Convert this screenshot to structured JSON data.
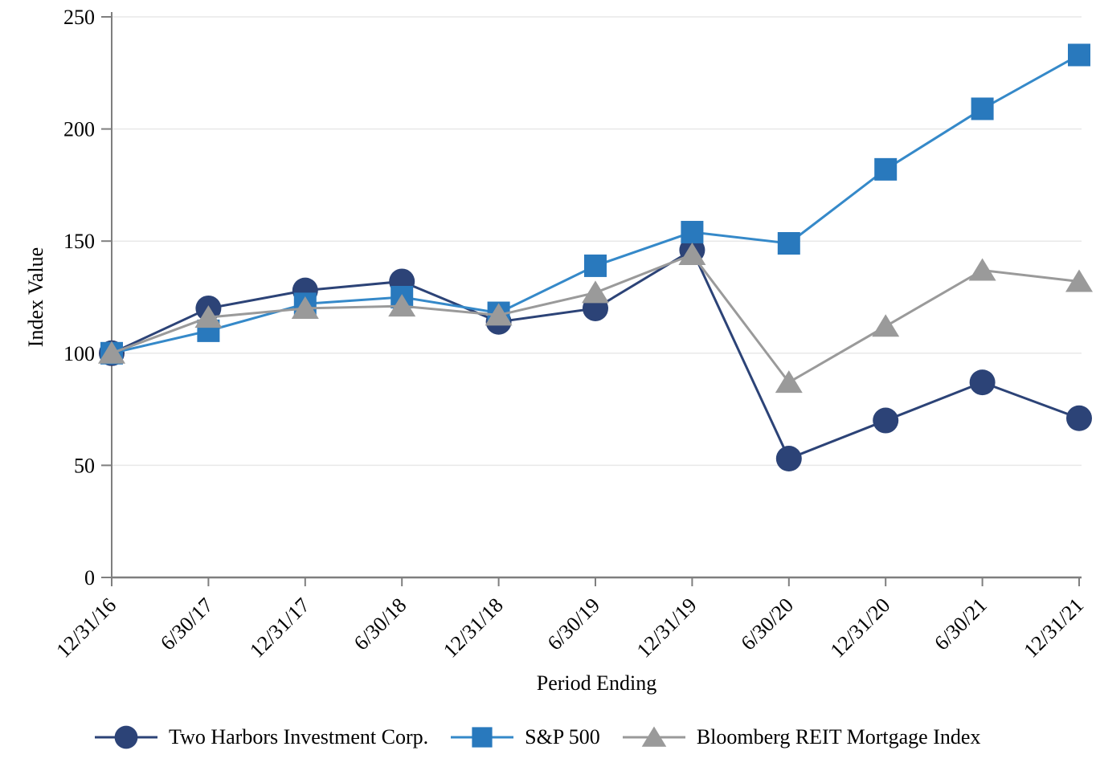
{
  "page": {
    "background_color": "#ffffff",
    "text_color": "#000000"
  },
  "chart_data": {
    "type": "line",
    "title": "",
    "xlabel": "Period Ending",
    "ylabel": "Index Value",
    "x_categories": [
      "12/31/16",
      "6/30/17",
      "12/31/17",
      "6/30/18",
      "12/31/18",
      "6/30/19",
      "12/31/19",
      "6/30/20",
      "12/31/20",
      "6/30/21",
      "12/31/21"
    ],
    "ylim": [
      0,
      250
    ],
    "yticks": [
      0,
      50,
      100,
      150,
      200,
      250
    ],
    "grid": "horizontal",
    "legend_position": "bottom",
    "axis_color": "#7f7f7f",
    "gridline_color": "#e8e8e8",
    "series": [
      {
        "name": "Two Harbors Investment Corp.",
        "marker": "circle",
        "color": "#2c4377",
        "line_color": "#2c4377",
        "values": [
          100,
          120,
          128,
          132,
          114,
          120,
          146,
          53,
          70,
          87,
          71
        ]
      },
      {
        "name": "S&P 500",
        "marker": "square",
        "color": "#2979bd",
        "line_color": "#3589c9",
        "values": [
          100,
          110,
          122,
          125,
          118,
          139,
          154,
          149,
          182,
          209,
          233
        ]
      },
      {
        "name": "Bloomberg REIT Mortgage Index",
        "marker": "triangle",
        "color": "#9a9a9a",
        "line_color": "#9a9a9a",
        "values": [
          100,
          116,
          120,
          121,
          117,
          127,
          144,
          87,
          112,
          137,
          132
        ]
      }
    ]
  }
}
